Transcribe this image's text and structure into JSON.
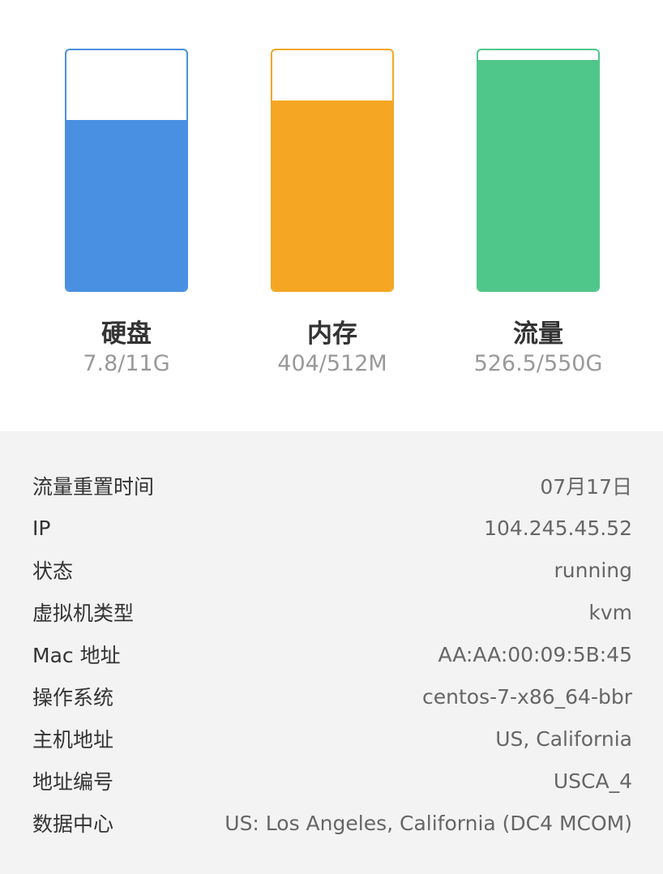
{
  "gauges": [
    {
      "label": "硬盘",
      "value": "7.8/11G",
      "fill_fraction": 0.71,
      "color": "#4a90e2"
    },
    {
      "label": "内存",
      "value": "404/512M",
      "fill_fraction": 0.79,
      "color": "#f5a623"
    },
    {
      "label": "流量",
      "value": "526.5/550G",
      "fill_fraction": 0.96,
      "color": "#50c78a"
    }
  ],
  "details": [
    {
      "key": "流量重置时间",
      "value": "07月17日"
    },
    {
      "key": "IP",
      "value": "104.245.45.52"
    },
    {
      "key": "状态",
      "value": "running"
    },
    {
      "key": "虚拟机类型",
      "value": "kvm"
    },
    {
      "key": "Mac 地址",
      "value": "AA:AA:00:09:5B:45"
    },
    {
      "key": "操作系统",
      "value": "centos-7-x86_64-bbr"
    },
    {
      "key": "主机地址",
      "value": "US, California"
    },
    {
      "key": "地址编号",
      "value": "USCA_4"
    },
    {
      "key": "数据中心",
      "value": "US: Los Angeles, California (DC4 MCOM)"
    }
  ]
}
